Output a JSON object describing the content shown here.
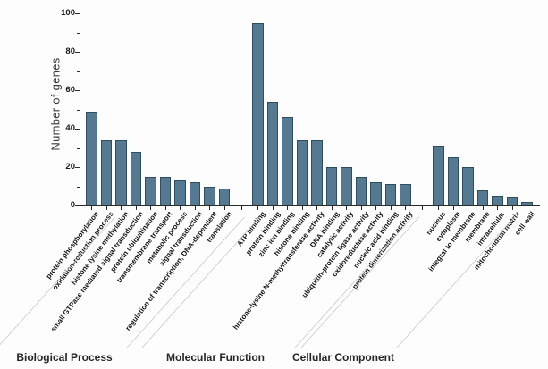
{
  "chart_data": {
    "type": "bar",
    "title": "",
    "ylabel": "Number of genes",
    "xlabel": "",
    "ylim": [
      0,
      100
    ],
    "yticks": [
      0,
      20,
      40,
      60,
      80,
      100
    ],
    "minor_tick_step": 10,
    "grid": false,
    "legend": "none",
    "bar_color": "#567992",
    "bar_border_color": "#2f4d61",
    "axis_color": "#2b2b2b",
    "bracket_line_color": "#c6c6c6",
    "groups": [
      {
        "name": "Biological Process",
        "categories": [
          "protein phosphorylation",
          "oxidation-reduction process",
          "histone lysine methylation",
          "small GTPase mediated signal transduction",
          "protein ubiquitination",
          "transmembrane transport",
          "metabolic process",
          "signal transduction",
          "regulation of transcription, DNA-dependent",
          "translation"
        ],
        "values": [
          49,
          34,
          34,
          28,
          15,
          15,
          13,
          12,
          10,
          9
        ]
      },
      {
        "name": "Molecular Function",
        "categories": [
          "ATP binding",
          "protein binding",
          "zinc ion binding",
          "histone binding",
          "histone-lysine N-methyltransferase activity",
          "DNA binding",
          "catalytic activity",
          "ubiquitin-protein ligase activity",
          "oxidoreductase activity",
          "nucleic acid binding",
          "protein dimerization activity"
        ],
        "values": [
          95,
          54,
          46,
          34,
          34,
          20,
          20,
          15,
          12,
          11,
          11
        ]
      },
      {
        "name": "Cellular Component",
        "categories": [
          "nucleus",
          "cytoplasm",
          "integral to membrane",
          "membrane",
          "intracellular",
          "mitochondrial matrix",
          "cell wall"
        ],
        "values": [
          31,
          25,
          20,
          8,
          5,
          4,
          2
        ]
      }
    ]
  }
}
